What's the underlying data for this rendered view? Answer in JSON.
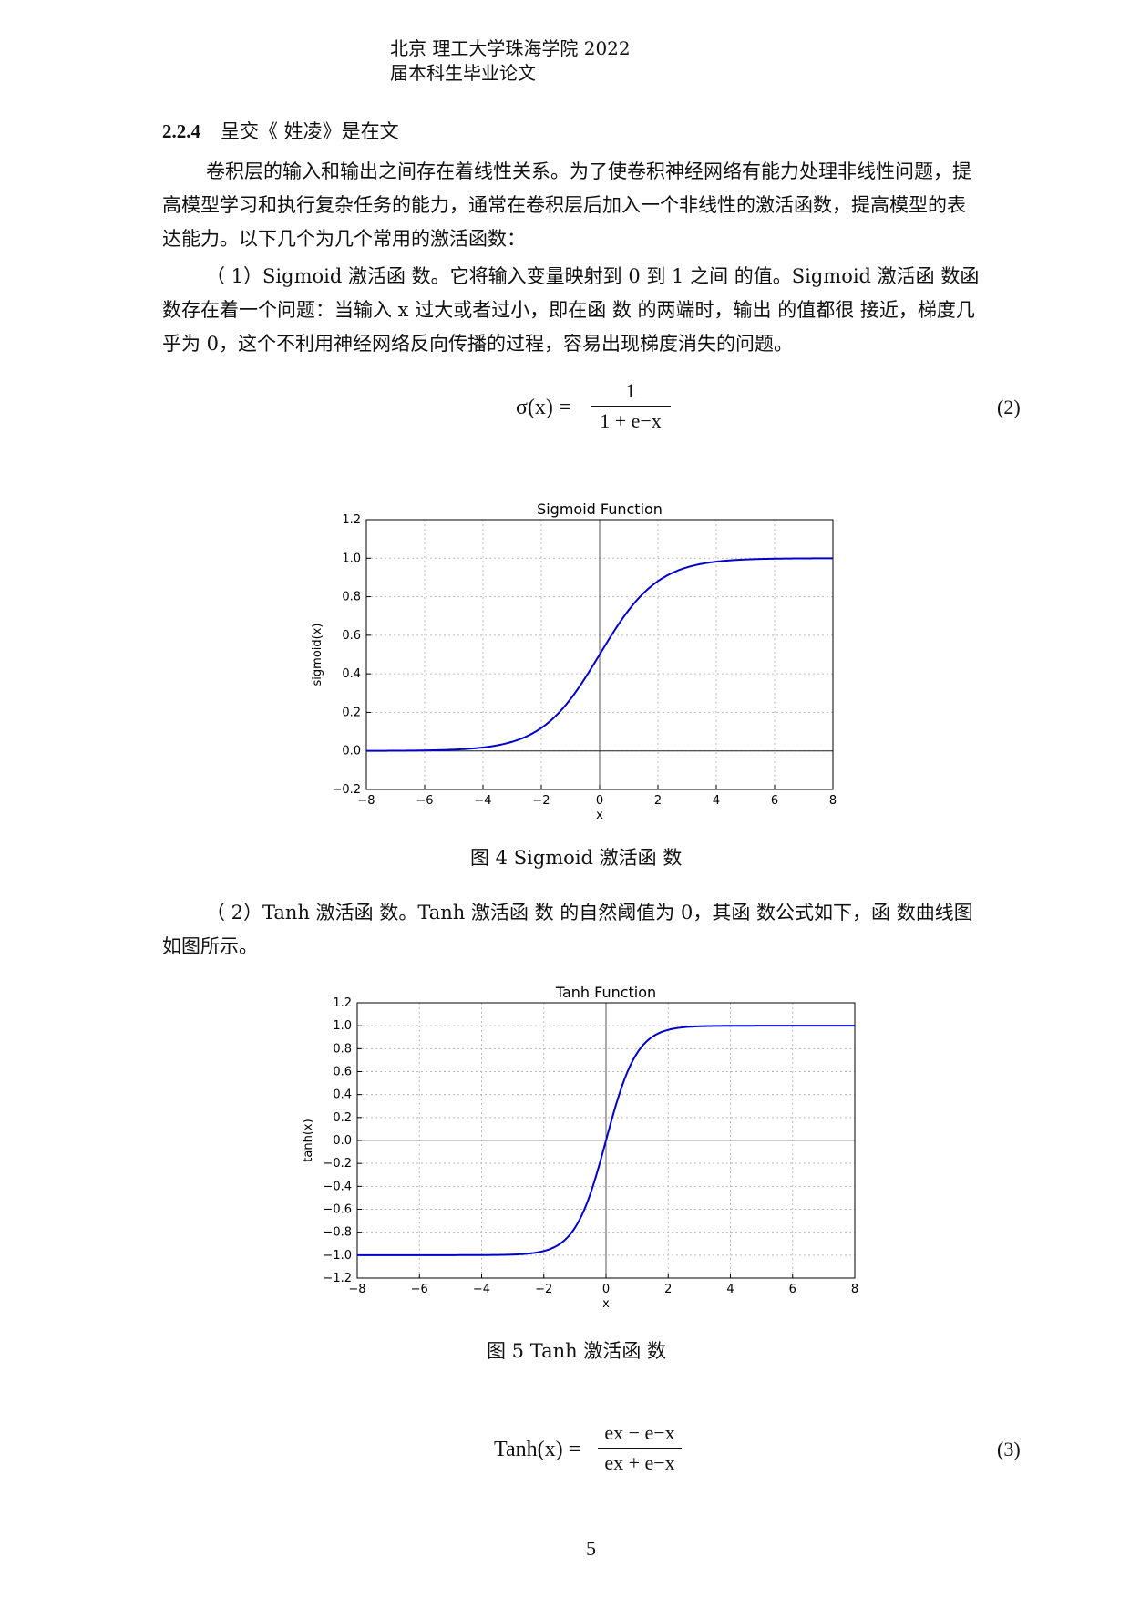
{
  "header": {
    "line1": "北京 理工大学珠海学院 2022",
    "line2": "届本科生毕业论文"
  },
  "section": {
    "number": "2.2.4",
    "title": "呈交《 姓凌》是在文"
  },
  "paragraphs": {
    "p1": "卷积层的输入和输出之间存在着线性关系。为了使卷积神经网络有能力处理非线性问题，提高模型学习和执行复杂任务的能力，通常在卷积层后加入一个非线性的激活函数，提高模型的表达能力。以下几个为几个常用的激活函数：",
    "p2": "（ 1）Sigmoid 激活函 数。它将输入变量映射到 0 到 1 之间 的值。Sigmoid 激活函 数函 数存在着一个问题：当输入 x 过大或者过小，即在函 数 的两端时，输出 的值都很 接近，梯度几乎为 0，这个不利用神经网络反向传播的过程，容易出现梯度消失的问题。",
    "p3": "（ 2）Tanh 激活函 数。Tanh 激活函 数 的自然阈值为 0，其函 数公式如下，函 数曲线图如图所示。"
  },
  "equations": {
    "eq2_lhs": "σ(x) =",
    "eq2_num": "1",
    "eq2_den": "1 + e−x",
    "eq2_label": "(2)",
    "eq3_lhs": "Tanh(x) =",
    "eq3_num": "ex − e−x",
    "eq3_den": "ex + e−x",
    "eq3_label": "(3)"
  },
  "figures": {
    "fig4_caption": "图  4    Sigmoid 激活函 数",
    "fig5_caption": "图  5    Tanh 激活函 数"
  },
  "page_number": "5",
  "chart_data": [
    {
      "type": "line",
      "function": "sigmoid",
      "title": "Sigmoid Function",
      "xlabel": "x",
      "ylabel": "sigmoid(x)",
      "xlim": [
        -8,
        8
      ],
      "ylim": [
        -0.2,
        1.2
      ],
      "xticks": [
        "−8",
        "−6",
        "−4",
        "−2",
        "0",
        "2",
        "4",
        "6",
        "8"
      ],
      "yticks": [
        "−0.2",
        "0.0",
        "0.2",
        "0.4",
        "0.6",
        "0.8",
        "1.0",
        "1.2"
      ],
      "grid": true,
      "line_color": "#0000cc",
      "x": [
        -8,
        -6,
        -4,
        -3,
        -2,
        -1,
        0,
        1,
        2,
        3,
        4,
        6,
        8
      ],
      "y": [
        0.0003,
        0.0025,
        0.018,
        0.047,
        0.119,
        0.269,
        0.5,
        0.731,
        0.881,
        0.953,
        0.982,
        0.9975,
        0.9997
      ]
    },
    {
      "type": "line",
      "function": "tanh",
      "title": "Tanh Function",
      "xlabel": "x",
      "ylabel": "tanh(x)",
      "xlim": [
        -8,
        8
      ],
      "ylim": [
        -1.2,
        1.2
      ],
      "xticks": [
        "−8",
        "−6",
        "−4",
        "−2",
        "0",
        "2",
        "4",
        "6",
        "8"
      ],
      "yticks": [
        "−1.2",
        "−1.0",
        "−0.8",
        "−0.6",
        "−0.4",
        "−0.2",
        "0.0",
        "0.2",
        "0.4",
        "0.6",
        "0.8",
        "1.0",
        "1.2"
      ],
      "grid": true,
      "line_color": "#0000cc",
      "x": [
        -8,
        -4,
        -3,
        -2,
        -1,
        -0.5,
        0,
        0.5,
        1,
        2,
        3,
        4,
        8
      ],
      "y": [
        -1.0,
        -0.999,
        -0.995,
        -0.964,
        -0.762,
        -0.462,
        0.0,
        0.462,
        0.762,
        0.964,
        0.995,
        0.999,
        1.0
      ]
    }
  ]
}
